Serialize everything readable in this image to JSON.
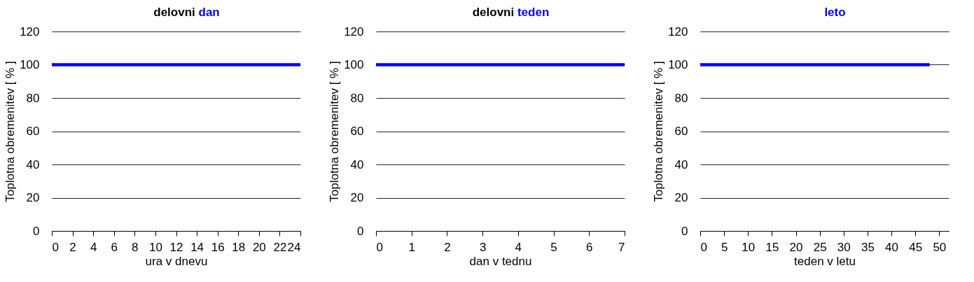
{
  "chart_data": [
    {
      "type": "line",
      "title": "delovni dan",
      "xlabel": "ura v dnevu",
      "ylabel": "Toplotna obremenitev  [ % ]",
      "x": [
        0,
        24
      ],
      "series": [
        {
          "color": "#0000ff",
          "values": [
            100,
            100
          ]
        }
      ],
      "xlim": [
        0,
        24
      ],
      "xticks": [
        0,
        2,
        4,
        6,
        8,
        10,
        12,
        14,
        16,
        18,
        20,
        22,
        24
      ],
      "ylim": [
        0,
        120
      ],
      "yticks": [
        0,
        20,
        40,
        60,
        80,
        100,
        120
      ],
      "grid": "y",
      "marker": "none",
      "line_style": "solid"
    },
    {
      "type": "line",
      "title": "delovni teden",
      "xlabel": "dan v tednu",
      "ylabel": "Toplotna obremenitev  [ % ]",
      "x": [
        0,
        7
      ],
      "series": [
        {
          "color": "#0000ff",
          "values": [
            100,
            100
          ]
        }
      ],
      "xlim": [
        0,
        7
      ],
      "xticks": [
        0,
        1,
        2,
        3,
        4,
        5,
        6,
        7
      ],
      "ylim": [
        0,
        120
      ],
      "yticks": [
        0,
        20,
        40,
        60,
        80,
        100,
        120
      ],
      "grid": "y",
      "marker": "none",
      "line_style": "solid"
    },
    {
      "type": "line",
      "title": "leto",
      "xlabel": "teden v letu",
      "ylabel": "Toplotna obremenitev  [ % ]",
      "x": [
        0,
        48
      ],
      "series": [
        {
          "color": "#0000ff",
          "values": [
            100,
            100
          ]
        }
      ],
      "xlim": [
        0,
        52
      ],
      "xticks": [
        0,
        5,
        10,
        15,
        20,
        25,
        30,
        35,
        40,
        45,
        50
      ],
      "ylim": [
        0,
        120
      ],
      "yticks": [
        0,
        20,
        40,
        60,
        80,
        100,
        120
      ],
      "grid": "y",
      "marker": "none",
      "line_style": "solid"
    }
  ]
}
